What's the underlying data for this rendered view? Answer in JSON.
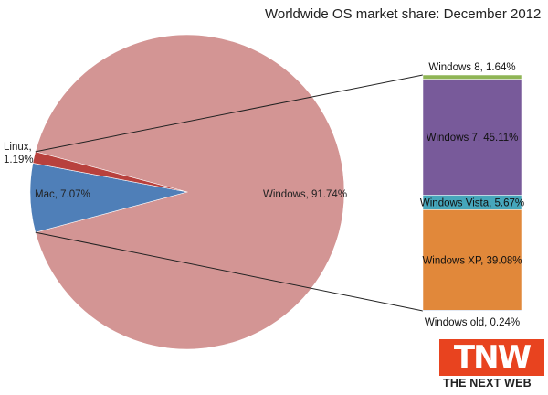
{
  "chart_data": [
    {
      "type": "pie",
      "title": "Worldwide OS market share: December 2012",
      "slices": [
        {
          "label": "Windows",
          "value": 91.74,
          "display": "Windows, 91.74%",
          "color": "#d39594"
        },
        {
          "label": "Mac",
          "value": 7.07,
          "display": "Mac, 7.07%",
          "color": "#4f7fb8"
        },
        {
          "label": "Linux",
          "value": 1.19,
          "display": "Linux,\n1.19%",
          "display_lines": [
            "Linux,",
            "1.19%"
          ],
          "color": "#b8413d"
        }
      ]
    },
    {
      "type": "bar",
      "stacked": true,
      "description_of": "Windows breakdown",
      "segments": [
        {
          "label": "Windows 8",
          "value": 1.64,
          "display": "Windows 8, 1.64%",
          "color": "#8fb555"
        },
        {
          "label": "Windows 7",
          "value": 45.11,
          "display": "Windows 7, 45.11%",
          "color": "#785a9a"
        },
        {
          "label": "Windows Vista",
          "value": 5.67,
          "display": "Windows Vista, 5.67%",
          "color": "#46a6bb"
        },
        {
          "label": "Windows XP",
          "value": 39.08,
          "display": "Windows XP, 39.08%",
          "color": "#e1883a"
        },
        {
          "label": "Windows old",
          "value": 0.24,
          "display": "Windows old, 0.24%",
          "color": "#7a9cc9"
        }
      ]
    }
  ],
  "logo": {
    "letters": "TNW",
    "text": "THE NEXT WEB"
  }
}
